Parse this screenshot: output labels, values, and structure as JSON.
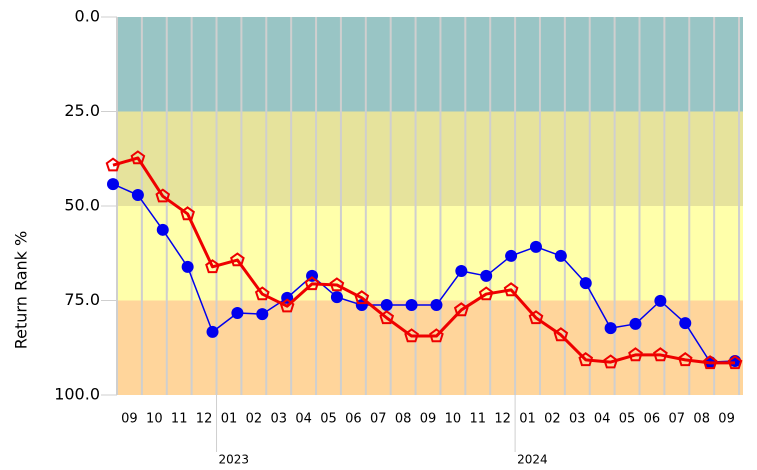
{
  "chart_data": {
    "type": "line",
    "y_label": "Return Rank %",
    "y_inverted": true,
    "ylim": [
      0,
      100
    ],
    "yticks": [
      {
        "value": 0,
        "label": "0.0"
      },
      {
        "value": 25,
        "label": "25.0"
      },
      {
        "value": 50,
        "label": "50.0"
      },
      {
        "value": 75,
        "label": "75.0"
      },
      {
        "value": 100,
        "label": "100.0"
      }
    ],
    "bands": [
      {
        "from": 0,
        "to": 25,
        "color": "#99c5c5"
      },
      {
        "from": 25,
        "to": 50,
        "color": "#e6e39c"
      },
      {
        "from": 50,
        "to": 75,
        "color": "#ffffaa"
      },
      {
        "from": 75,
        "to": 100,
        "color": "#ffd59b"
      }
    ],
    "grid": true,
    "categories": [
      null,
      "09",
      "10",
      "11",
      "12",
      "01",
      "02",
      "03",
      "04",
      "05",
      "06",
      "07",
      "08",
      "09",
      "10",
      "11",
      "12",
      "01",
      "02",
      "03",
      "04",
      "05",
      "06",
      "07",
      "08",
      "09"
    ],
    "year_categories": [
      null,
      null,
      null,
      null,
      null,
      "2023",
      null,
      null,
      null,
      null,
      null,
      null,
      null,
      null,
      null,
      null,
      null,
      "2024",
      null,
      null,
      null,
      null,
      null,
      null,
      null,
      null
    ],
    "series": [
      {
        "color": "#0000ee",
        "marker": "circle",
        "values": [
          44.2,
          47.1,
          56.3,
          66.1,
          83.3,
          78.3,
          78.6,
          74.3,
          68.5,
          74.1,
          76.2,
          76.2,
          76.2,
          76.2,
          67.2,
          68.5,
          63.2,
          60.8,
          63.2,
          70.4,
          82.3,
          81.2,
          75.1,
          81.0,
          91.3,
          91.0
        ]
      },
      {
        "color": "#ee0000",
        "marker": "pentagon",
        "values": [
          39.2,
          37.3,
          47.4,
          52.1,
          66.1,
          64.3,
          73.3,
          76.5,
          70.6,
          70.9,
          74.3,
          79.6,
          84.4,
          84.4,
          77.5,
          73.3,
          72.2,
          79.6,
          84.1,
          90.7,
          91.3,
          89.4,
          89.4,
          90.7,
          91.5,
          91.5
        ]
      }
    ]
  }
}
